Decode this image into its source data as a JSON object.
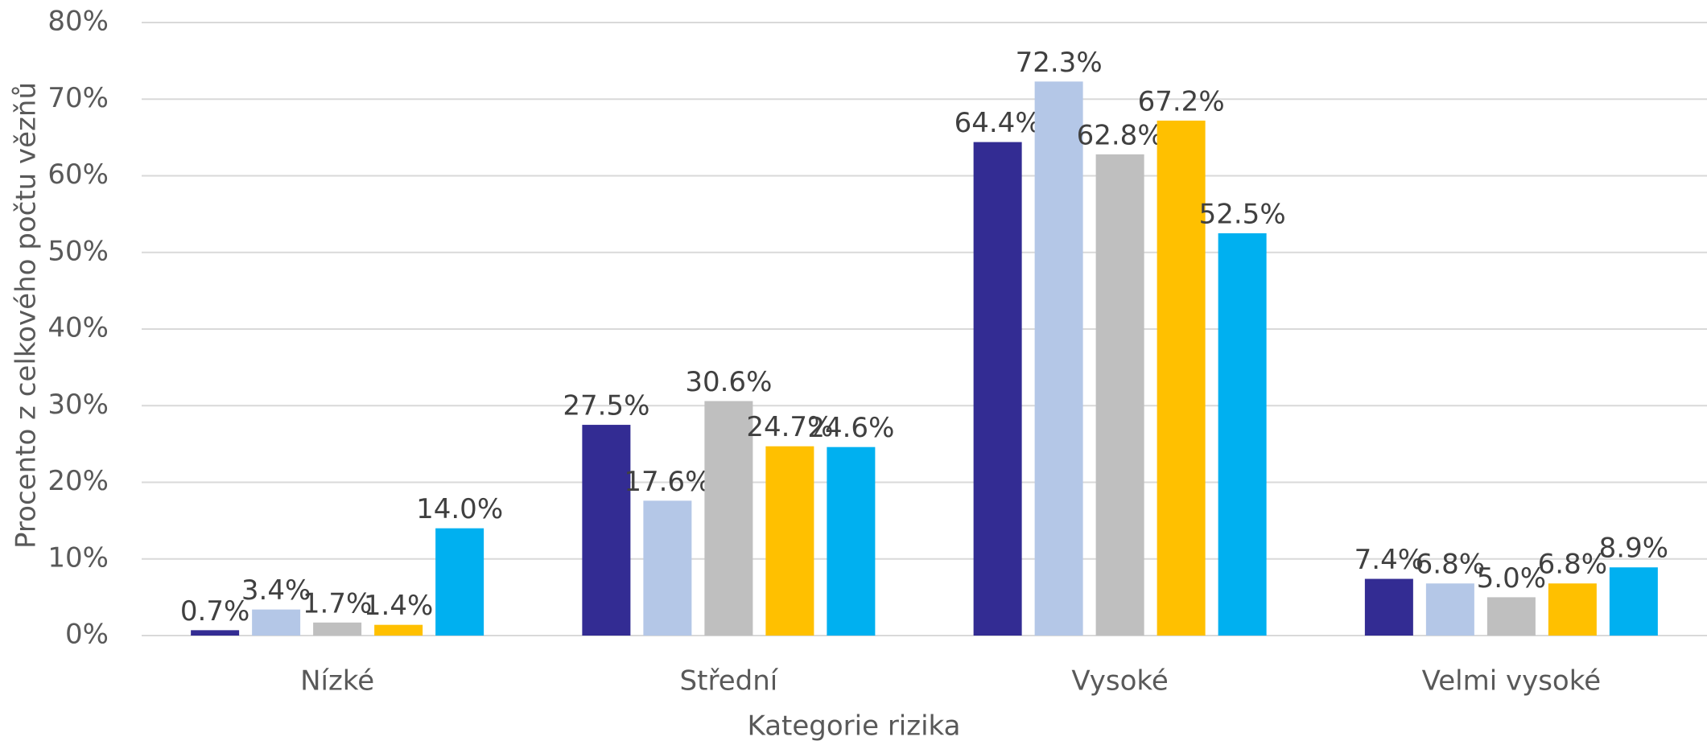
{
  "chart_data": {
    "type": "bar",
    "xlabel": "Kategorie rizika",
    "ylabel": "Procento z celkového počtu vězňů",
    "categories": [
      "Nízké",
      "Střední",
      "Vysoké",
      "Velmi vysoké"
    ],
    "series": [
      {
        "color": "#332c93",
        "values": [
          0.7,
          27.5,
          64.4,
          7.4
        ],
        "value_labels": [
          "0.7%",
          "27.5%",
          "64.4%",
          "7.4%"
        ]
      },
      {
        "color": "#b4c7e7",
        "values": [
          3.4,
          17.6,
          72.3,
          6.8
        ],
        "value_labels": [
          "3.4%",
          "17.6%",
          "72.3%",
          "6.8%"
        ]
      },
      {
        "color": "#bfbfbf",
        "values": [
          1.7,
          30.6,
          62.8,
          5.0
        ],
        "value_labels": [
          "1.7%",
          "30.6%",
          "62.8%",
          "5.0%"
        ]
      },
      {
        "color": "#ffc000",
        "values": [
          1.4,
          24.7,
          67.2,
          6.8
        ],
        "value_labels": [
          "1.4%",
          "24.7%",
          "67.2%",
          "6.8%"
        ]
      },
      {
        "color": "#00b0f0",
        "values": [
          14.0,
          24.6,
          52.5,
          8.9
        ],
        "value_labels": [
          "14.0%",
          "24.6%",
          "52.5%",
          "8.9%"
        ]
      }
    ],
    "ylim": [
      0,
      80
    ],
    "yticks": [
      {
        "value": 0,
        "label": "0%"
      },
      {
        "value": 10,
        "label": "10%"
      },
      {
        "value": 20,
        "label": "20%"
      },
      {
        "value": 30,
        "label": "30%"
      },
      {
        "value": 40,
        "label": "40%"
      },
      {
        "value": 50,
        "label": "50%"
      },
      {
        "value": 60,
        "label": "60%"
      },
      {
        "value": 70,
        "label": "70%"
      },
      {
        "value": 80,
        "label": "80%"
      }
    ],
    "grid": true
  }
}
